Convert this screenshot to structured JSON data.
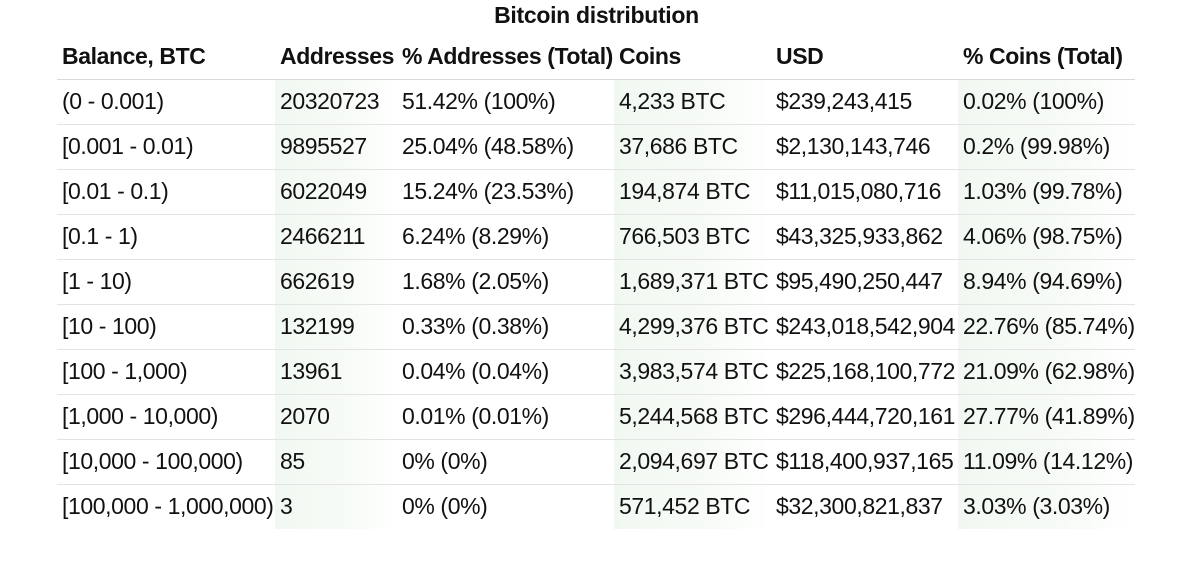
{
  "title": "Bitcoin distribution",
  "columns": [
    "Balance, BTC",
    "Addresses",
    "% Addresses (Total)",
    "Coins",
    "USD",
    "% Coins (Total)"
  ],
  "rows": [
    [
      "(0 - 0.001)",
      "20320723",
      "51.42% (100%)",
      "4,233 BTC",
      "$239,243,415",
      "0.02% (100%)"
    ],
    [
      "[0.001 - 0.01)",
      "9895527",
      "25.04% (48.58%)",
      "37,686 BTC",
      "$2,130,143,746",
      "0.2% (99.98%)"
    ],
    [
      "[0.01 - 0.1)",
      "6022049",
      "15.24% (23.53%)",
      "194,874 BTC",
      "$11,015,080,716",
      "1.03% (99.78%)"
    ],
    [
      "[0.1 - 1)",
      "2466211",
      "6.24% (8.29%)",
      "766,503 BTC",
      "$43,325,933,862",
      "4.06% (98.75%)"
    ],
    [
      "[1 - 10)",
      "662619",
      "1.68% (2.05%)",
      "1,689,371 BTC",
      "$95,490,250,447",
      "8.94% (94.69%)"
    ],
    [
      "[10 - 100)",
      "132199",
      "0.33% (0.38%)",
      "4,299,376 BTC",
      "$243,018,542,904",
      "22.76% (85.74%)"
    ],
    [
      "[100 - 1,000)",
      "13961",
      "0.04% (0.04%)",
      "3,983,574 BTC",
      "$225,168,100,772",
      "21.09% (62.98%)"
    ],
    [
      "[1,000 - 10,000)",
      "2070",
      "0.01% (0.01%)",
      "5,244,568 BTC",
      "$296,444,720,161",
      "27.77% (41.89%)"
    ],
    [
      "[10,000 - 100,000)",
      "85",
      "0% (0%)",
      "2,094,697 BTC",
      "$118,400,937,165",
      "11.09% (14.12%)"
    ],
    [
      "[100,000 - 1,000,000)",
      "3",
      "0% (0%)",
      "571,452 BTC",
      "$32,300,821,837",
      "3.03% (3.03%)"
    ]
  ],
  "colors": {
    "shade": "#f1f8f1",
    "rule": "#e3e3e3"
  }
}
